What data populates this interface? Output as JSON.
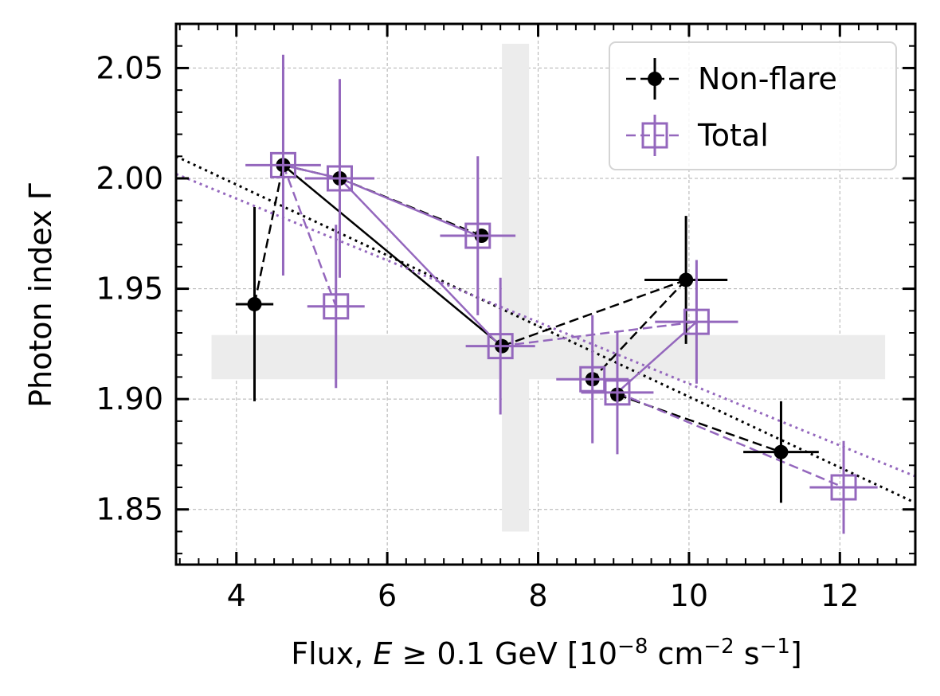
{
  "chart_data": {
    "type": "scatter",
    "title": "",
    "xlabel_prefix": "Flux, ",
    "xlabel_var": "E",
    "xlabel_mid": " ≥ 0.1 GeV [10",
    "xlabel_exp1": "−8",
    "xlabel_unit1": " cm",
    "xlabel_exp2": "−2",
    "xlabel_unit2": " s",
    "xlabel_exp3": "−1",
    "xlabel_end": "]",
    "ylabel": "Photon index  Γ",
    "xlim": [
      3.2,
      13.0
    ],
    "ylim": [
      1.825,
      2.07
    ],
    "xticks": [
      4,
      6,
      8,
      10,
      12
    ],
    "xtick_labels": [
      "4",
      "6",
      "8",
      "10",
      "12"
    ],
    "yticks": [
      1.85,
      1.9,
      1.95,
      2.0,
      2.05
    ],
    "ytick_labels": [
      "1.85",
      "1.90",
      "1.95",
      "2.00",
      "2.05"
    ],
    "grid": true,
    "legend_location": "upper right",
    "bands": {
      "vertical": {
        "x_range": [
          7.52,
          7.88
        ],
        "y_range": [
          1.84,
          2.061
        ],
        "color": "#ececec"
      },
      "horizontal": {
        "x_range": [
          3.67,
          12.6
        ],
        "y_range": [
          1.909,
          1.929
        ],
        "color": "#ececec"
      }
    },
    "series": [
      {
        "name": "Non-flare",
        "color": "#000000",
        "marker": "filled-circle",
        "points": [
          {
            "x": 4.24,
            "y": 1.943,
            "xerr": 0.25,
            "yerr": 0.044
          },
          {
            "x": 4.62,
            "y": 2.006,
            "xerr": 0.0,
            "yerr": 0.0
          },
          {
            "x": 5.37,
            "y": 2.0,
            "xerr": 0.0,
            "yerr": 0.0
          },
          {
            "x": 7.25,
            "y": 1.974,
            "xerr": 0.0,
            "yerr": 0.0
          },
          {
            "x": 7.52,
            "y": 1.924,
            "xerr": 0.0,
            "yerr": 0.0
          },
          {
            "x": 8.72,
            "y": 1.909,
            "xerr": 0.0,
            "yerr": 0.0
          },
          {
            "x": 9.05,
            "y": 1.902,
            "xerr": 0.0,
            "yerr": 0.0
          },
          {
            "x": 9.96,
            "y": 1.954,
            "xerr": 0.55,
            "yerr": 0.029
          },
          {
            "x": 11.22,
            "y": 1.876,
            "xerr": 0.5,
            "yerr": 0.023
          }
        ],
        "connect_solid": [
          [
            1,
            4
          ]
        ],
        "connect_dashed": [
          [
            0,
            1
          ],
          [
            1,
            2
          ],
          [
            2,
            3
          ],
          [
            4,
            7
          ],
          [
            7,
            5
          ],
          [
            6,
            8
          ]
        ],
        "fit_line": {
          "x": [
            3.2,
            13.0
          ],
          "y": [
            2.01,
            1.853
          ]
        }
      },
      {
        "name": "Total",
        "color": "#9467bd",
        "marker": "open-square",
        "points": [
          {
            "x": 4.62,
            "y": 2.006,
            "xerr": 0.5,
            "yerr": 0.05
          },
          {
            "x": 5.37,
            "y": 2.0,
            "xerr": 0.46,
            "yerr": 0.045
          },
          {
            "x": 5.32,
            "y": 1.942,
            "xerr": 0.38,
            "yerr": 0.037
          },
          {
            "x": 7.2,
            "y": 1.974,
            "xerr": 0.5,
            "yerr": 0.036
          },
          {
            "x": 7.5,
            "y": 1.924,
            "xerr": 0.46,
            "yerr": 0.031
          },
          {
            "x": 8.72,
            "y": 1.909,
            "xerr": 0.48,
            "yerr": 0.029
          },
          {
            "x": 9.05,
            "y": 1.903,
            "xerr": 0.48,
            "yerr": 0.028
          },
          {
            "x": 10.1,
            "y": 1.935,
            "xerr": 0.55,
            "yerr": 0.028
          },
          {
            "x": 12.05,
            "y": 1.86,
            "xerr": 0.45,
            "yerr": 0.021
          }
        ],
        "connect_solid": [
          [
            0,
            1
          ],
          [
            1,
            3
          ],
          [
            1,
            4
          ],
          [
            6,
            7
          ]
        ],
        "connect_dashed": [
          [
            0,
            2
          ],
          [
            4,
            7
          ],
          [
            6,
            8
          ]
        ],
        "fit_line": {
          "x": [
            3.2,
            13.0
          ],
          "y": [
            2.002,
            1.865
          ]
        }
      }
    ]
  }
}
